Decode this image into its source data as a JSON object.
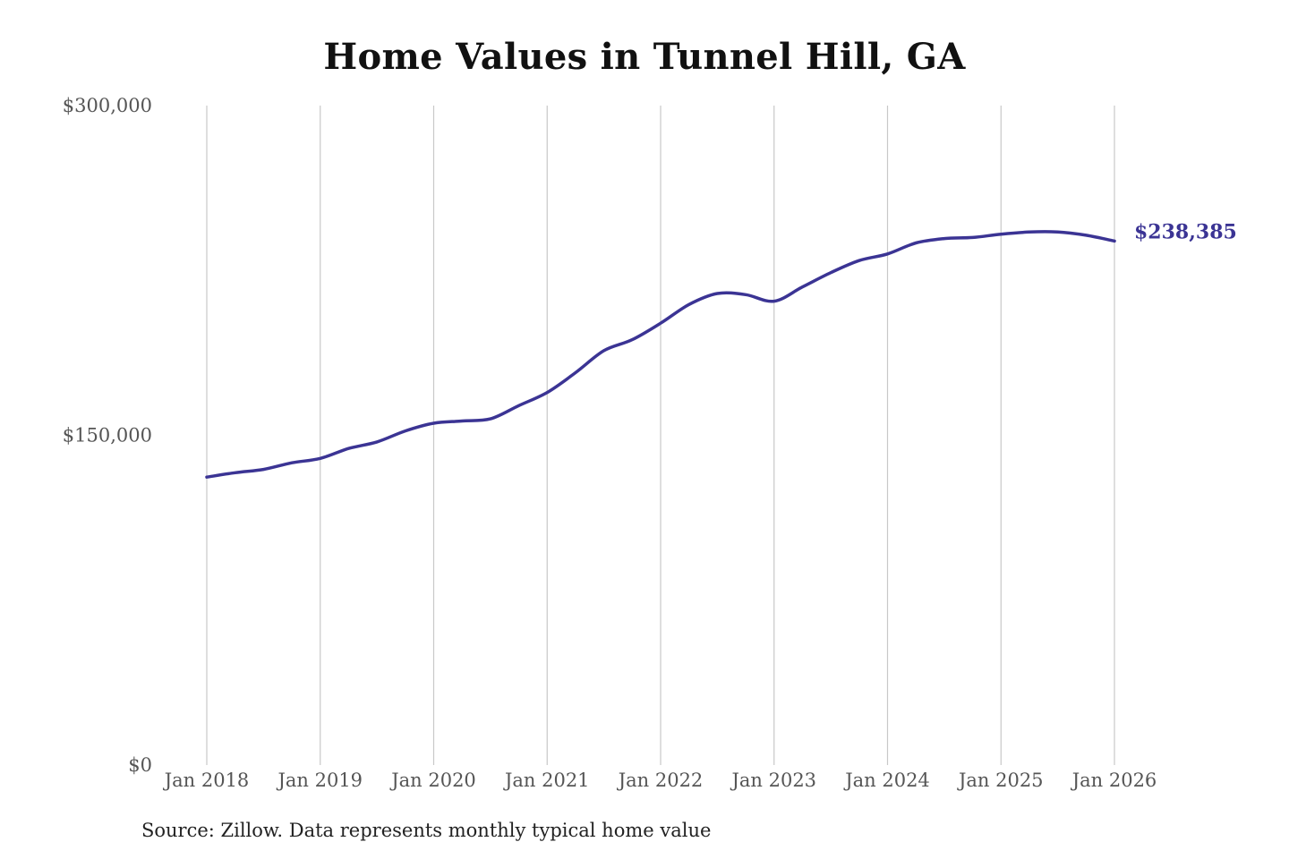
{
  "chart_data": {
    "type": "line",
    "title": "Home Values in Tunnel Hill, GA",
    "xlabel": "",
    "ylabel": "",
    "source_note": "Source: Zillow. Data represents monthly typical home value",
    "ylim": [
      0,
      300000
    ],
    "y_ticks": [
      {
        "value": 0,
        "label": "$0"
      },
      {
        "value": 150000,
        "label": "$150,000"
      },
      {
        "value": 300000,
        "label": "$300,000"
      }
    ],
    "x_ticks": [
      {
        "value": 2018,
        "label": "Jan 2018"
      },
      {
        "value": 2019,
        "label": "Jan 2019"
      },
      {
        "value": 2020,
        "label": "Jan 2020"
      },
      {
        "value": 2021,
        "label": "Jan 2021"
      },
      {
        "value": 2022,
        "label": "Jan 2022"
      },
      {
        "value": 2023,
        "label": "Jan 2023"
      },
      {
        "value": 2024,
        "label": "Jan 2024"
      },
      {
        "value": 2025,
        "label": "Jan 2025"
      },
      {
        "value": 2026,
        "label": "Jan 2026"
      }
    ],
    "grid": "vertical",
    "series": [
      {
        "color": "#3b3494",
        "x": [
          "2018-01",
          "2018-04",
          "2018-07",
          "2018-10",
          "2019-01",
          "2019-04",
          "2019-07",
          "2019-10",
          "2020-01",
          "2020-04",
          "2020-07",
          "2020-10",
          "2021-01",
          "2021-04",
          "2021-07",
          "2021-10",
          "2022-01",
          "2022-04",
          "2022-07",
          "2022-10",
          "2023-01",
          "2023-04",
          "2023-07",
          "2023-10",
          "2024-01",
          "2024-04",
          "2024-07",
          "2024-10",
          "2025-01",
          "2025-04",
          "2025-07",
          "2025-10",
          "2026-01"
        ],
        "values": [
          131000,
          133000,
          134500,
          137500,
          139500,
          144000,
          147000,
          152000,
          155500,
          156500,
          157500,
          163500,
          169500,
          178500,
          188500,
          193500,
          201000,
          209500,
          214500,
          214000,
          211000,
          217500,
          224000,
          229500,
          232500,
          237500,
          239500,
          240000,
          241500,
          242500,
          242500,
          241000,
          238385
        ]
      }
    ],
    "end_label": "$238,385"
  }
}
